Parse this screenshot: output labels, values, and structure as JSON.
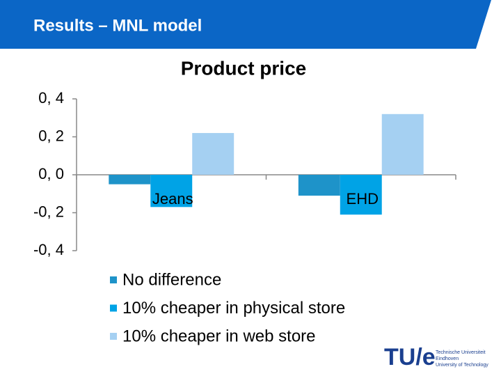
{
  "slide_title": "Results – MNL model",
  "logo": {
    "mark": "TU/e",
    "lines": [
      "Technische Universiteit",
      "Eindhoven",
      "University of Technology"
    ]
  },
  "chart_data": {
    "type": "bar",
    "title": "Product price",
    "categories": [
      "Jeans",
      "EHD"
    ],
    "series": [
      {
        "name": "No difference",
        "color": "#1e93c9",
        "values": [
          -0.05,
          -0.11
        ]
      },
      {
        "name": "10% cheaper in physical store",
        "color": "#00a3e6",
        "values": [
          -0.17,
          -0.21
        ]
      },
      {
        "name": "10% cheaper in web store",
        "color": "#a5d0f2",
        "values": [
          0.22,
          0.32
        ]
      }
    ],
    "ylim": [
      -0.4,
      0.4
    ],
    "yticks": [
      {
        "value": -0.4,
        "label": "-0, 4"
      },
      {
        "value": -0.2,
        "label": "-0, 2"
      },
      {
        "value": 0,
        "label": "0, 0"
      },
      {
        "value": 0.2,
        "label": "0, 2"
      },
      {
        "value": 0.4,
        "label": "0, 4"
      }
    ],
    "grid": false,
    "legend": "bottom"
  }
}
